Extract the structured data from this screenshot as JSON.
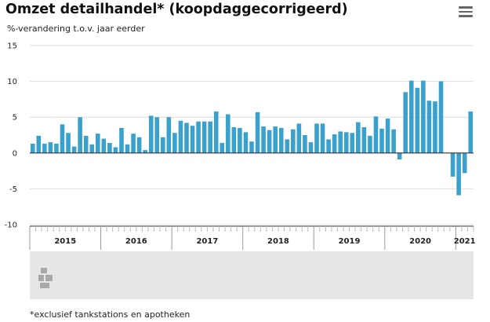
{
  "header": {
    "title": "Omzet detailhandel* (koopdaggecorrigeerd)",
    "subtitle": "%-verandering t.o.v. jaar eerder",
    "menu_icon": "hamburger-menu-icon"
  },
  "footnote": "*exclusief tankstations en apotheken",
  "navigator": {
    "logo_icon": "cbs-logo-icon"
  },
  "colors": {
    "bar": "#3aa0cc",
    "axis": "#333333",
    "grid": "#dddddd",
    "navigator_bg": "#e6e6e6"
  },
  "chart_data": {
    "type": "bar",
    "title": "Omzet detailhandel* (koopdaggecorrigeerd)",
    "ylabel": "%-verandering t.o.v. jaar eerder",
    "ylim": [
      -10,
      15
    ],
    "yticks": [
      15,
      10,
      5,
      0,
      -5,
      -10
    ],
    "grid": true,
    "years": [
      "2015",
      "2016",
      "2017",
      "2018",
      "2019",
      "2020",
      "2021"
    ],
    "start": "2015-01",
    "series": [
      {
        "values": [
          1.3,
          2.4,
          1.3,
          1.5,
          1.3,
          4.0,
          2.8,
          0.9,
          5.0,
          2.4,
          1.2,
          2.7,
          2.0,
          1.4,
          0.8,
          3.5,
          1.2,
          2.7,
          2.2,
          0.4,
          5.2,
          5.0,
          2.2,
          5.0,
          2.8,
          4.5,
          4.2,
          3.8,
          4.4,
          4.4,
          4.4,
          5.8,
          1.4,
          5.4,
          3.6,
          3.5,
          2.9,
          1.6,
          5.7,
          3.7,
          3.2,
          3.7,
          3.5,
          1.9,
          3.3,
          4.1,
          2.5,
          1.5,
          4.1,
          4.1,
          1.9,
          2.6,
          3.0,
          2.9,
          2.8,
          4.3,
          3.6,
          2.4,
          5.1,
          3.4,
          4.8,
          3.3,
          -0.9,
          8.5,
          10.1,
          9.1,
          10.1,
          7.3,
          7.2,
          10.0,
          0,
          -3.3,
          -5.9,
          -2.8,
          5.8
        ]
      }
    ]
  }
}
